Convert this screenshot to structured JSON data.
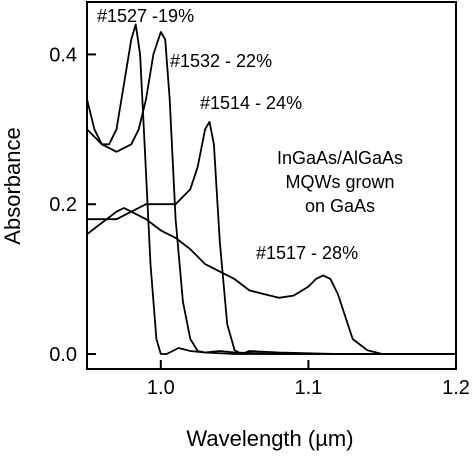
{
  "chart_data": {
    "type": "line",
    "xlabel": "Wavelength (µm)",
    "ylabel": "Absorbance",
    "xlim": [
      0.95,
      1.2
    ],
    "ylim": [
      -0.02,
      0.47
    ],
    "xticks": [
      1.0,
      1.1,
      1.2
    ],
    "xtick_labels": [
      "1.0",
      "1.1",
      "1.2"
    ],
    "yticks": [
      0.0,
      0.2,
      0.4
    ],
    "ytick_labels": [
      "0.0",
      "0.2",
      "0.4"
    ],
    "grid": false,
    "legend": "none",
    "annotation_text": [
      "InGaAs/AlGaAs",
      "MQWs grown",
      "on GaAs"
    ],
    "series": [
      {
        "name": "#1527 -19%",
        "x": [
          0.95,
          0.955,
          0.96,
          0.965,
          0.97,
          0.975,
          0.98,
          0.983,
          0.986,
          0.989,
          0.993,
          0.997,
          1.0,
          1.004,
          1.008,
          1.012,
          1.02,
          1.03,
          1.05,
          1.08,
          1.12,
          1.2
        ],
        "y": [
          0.34,
          0.3,
          0.28,
          0.28,
          0.3,
          0.36,
          0.42,
          0.44,
          0.4,
          0.28,
          0.12,
          0.02,
          0.0,
          0.0,
          0.004,
          0.008,
          0.004,
          0.002,
          0.0,
          0.0,
          0.0,
          0.0
        ]
      },
      {
        "name": "#1532 - 22%",
        "x": [
          0.95,
          0.96,
          0.97,
          0.98,
          0.985,
          0.99,
          0.995,
          1.0,
          1.003,
          1.006,
          1.01,
          1.015,
          1.02,
          1.025,
          1.03,
          1.04,
          1.05,
          1.08,
          1.12,
          1.2
        ],
        "y": [
          0.3,
          0.28,
          0.27,
          0.28,
          0.3,
          0.34,
          0.4,
          0.43,
          0.42,
          0.34,
          0.18,
          0.07,
          0.02,
          0.004,
          0.002,
          0.004,
          0.002,
          0.0,
          0.0,
          0.0
        ]
      },
      {
        "name": "#1514 - 24%",
        "x": [
          0.95,
          0.96,
          0.97,
          0.98,
          0.99,
          1.0,
          1.01,
          1.02,
          1.025,
          1.03,
          1.033,
          1.036,
          1.04,
          1.045,
          1.05,
          1.055,
          1.06,
          1.08,
          1.12,
          1.2
        ],
        "y": [
          0.18,
          0.18,
          0.18,
          0.19,
          0.2,
          0.2,
          0.2,
          0.22,
          0.25,
          0.3,
          0.31,
          0.28,
          0.15,
          0.04,
          0.005,
          0.0,
          0.004,
          0.002,
          0.0,
          0.0
        ]
      },
      {
        "name": "#1517 - 28%",
        "x": [
          0.95,
          0.96,
          0.97,
          0.975,
          0.98,
          0.99,
          1.0,
          1.01,
          1.02,
          1.03,
          1.04,
          1.05,
          1.06,
          1.07,
          1.08,
          1.09,
          1.1,
          1.105,
          1.11,
          1.115,
          1.12,
          1.125,
          1.13,
          1.14,
          1.15,
          1.2
        ],
        "y": [
          0.16,
          0.175,
          0.19,
          0.195,
          0.19,
          0.18,
          0.165,
          0.155,
          0.14,
          0.12,
          0.11,
          0.1,
          0.085,
          0.08,
          0.075,
          0.078,
          0.09,
          0.1,
          0.105,
          0.1,
          0.08,
          0.05,
          0.02,
          0.005,
          0.0,
          0.0
        ]
      }
    ]
  }
}
